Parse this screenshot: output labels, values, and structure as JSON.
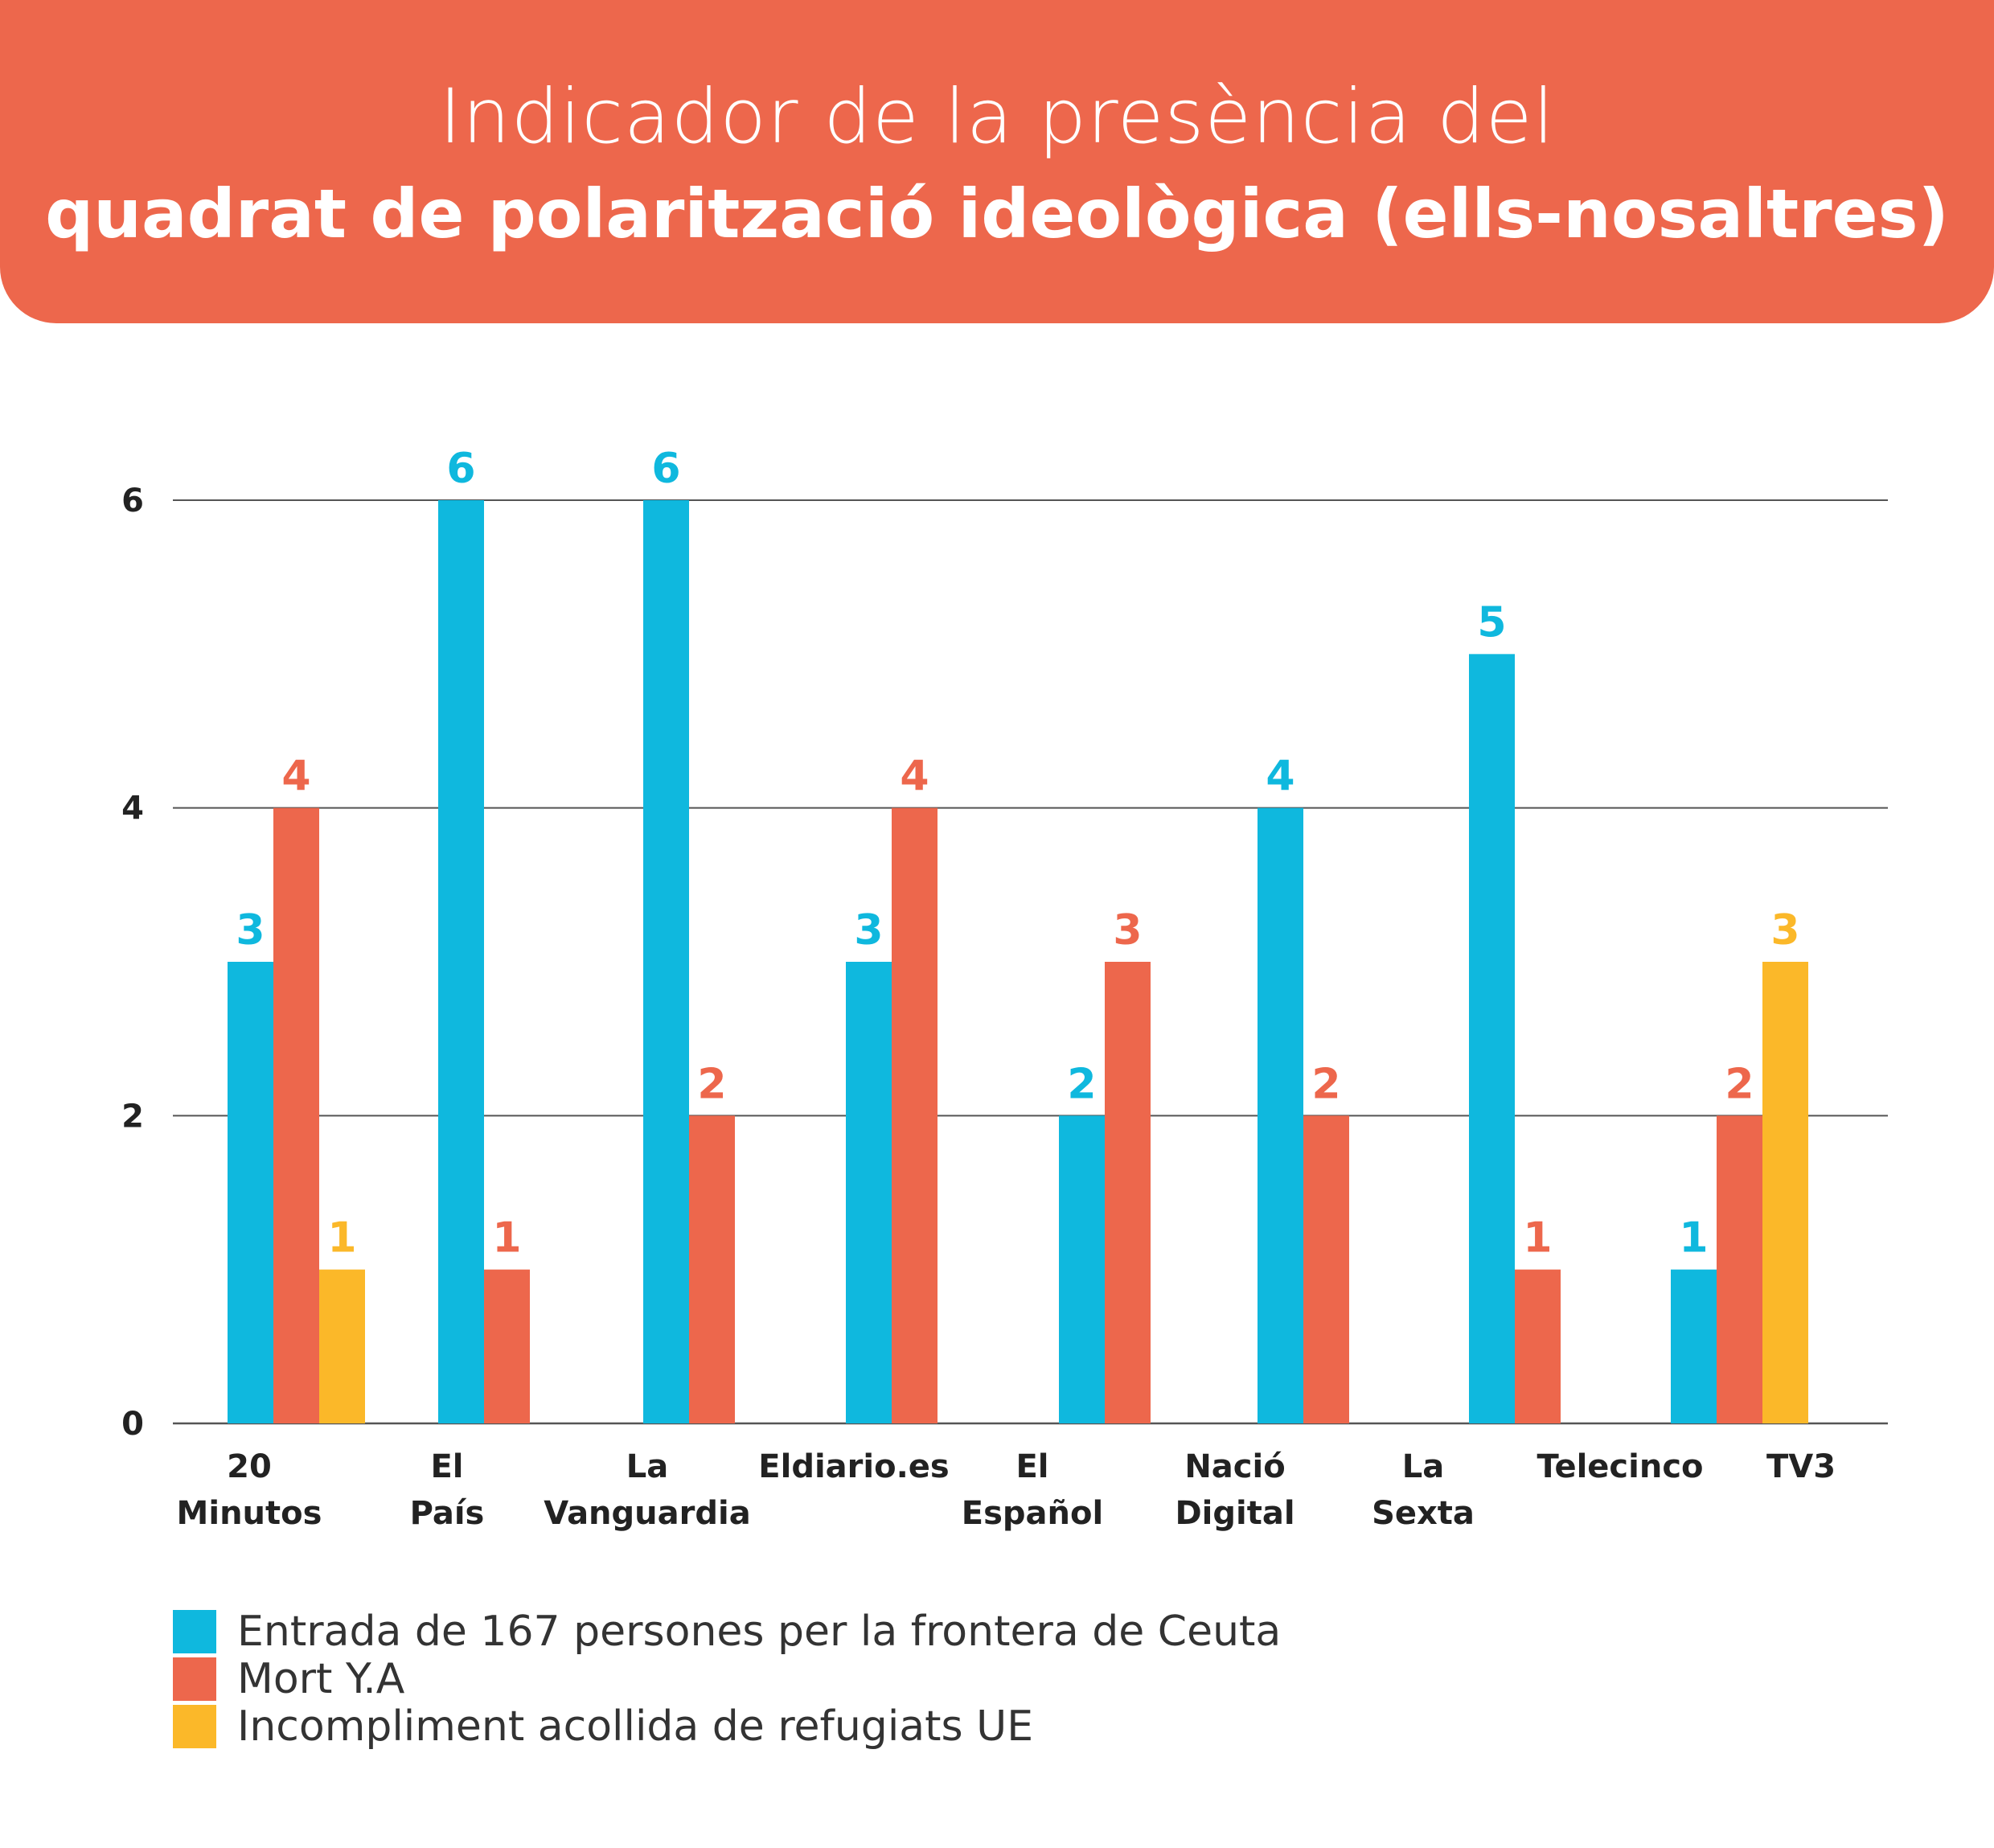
{
  "header": {
    "title_line1": "Indicador de la presència del",
    "title_line2": "quadrat de polarització ideològica (ells-nosaltres)"
  },
  "colors": {
    "header_bg": "#ED674C",
    "series_blue": "#0FB8DE",
    "series_red": "#ED674C",
    "series_yellow": "#FBB829",
    "axis_text": "#222222"
  },
  "chart_data": {
    "type": "bar",
    "title": "Indicador de la presència del quadrat de polarització ideològica (ells-nosaltres)",
    "categories": [
      [
        "20",
        "Minutos"
      ],
      [
        "El",
        "País"
      ],
      [
        "La",
        "Vanguardia"
      ],
      [
        "Eldiario.es"
      ],
      [
        "El",
        "Español"
      ],
      [
        "Nació",
        "Digital"
      ],
      [
        "La",
        "Sexta"
      ],
      [
        "Telecinco"
      ],
      [
        "TV3"
      ]
    ],
    "series": [
      {
        "name": "Entrada de 167 persones per la frontera de Ceuta",
        "color": "#0FB8DE",
        "values": [
          3,
          6,
          6,
          3,
          2,
          4,
          5,
          null,
          1
        ]
      },
      {
        "name": "Mort Y.A",
        "color": "#ED674C",
        "values": [
          4,
          1,
          2,
          4,
          3,
          2,
          1,
          null,
          2
        ]
      },
      {
        "name": "Incompliment acollida de refugiats UE",
        "color": "#FBB829",
        "values": [
          1,
          null,
          null,
          null,
          null,
          null,
          null,
          null,
          3
        ]
      }
    ],
    "yticks": [
      "0",
      "2",
      "4",
      "6"
    ],
    "ylim": [
      0,
      6
    ],
    "grid": true,
    "legend_position": "bottom-left"
  }
}
